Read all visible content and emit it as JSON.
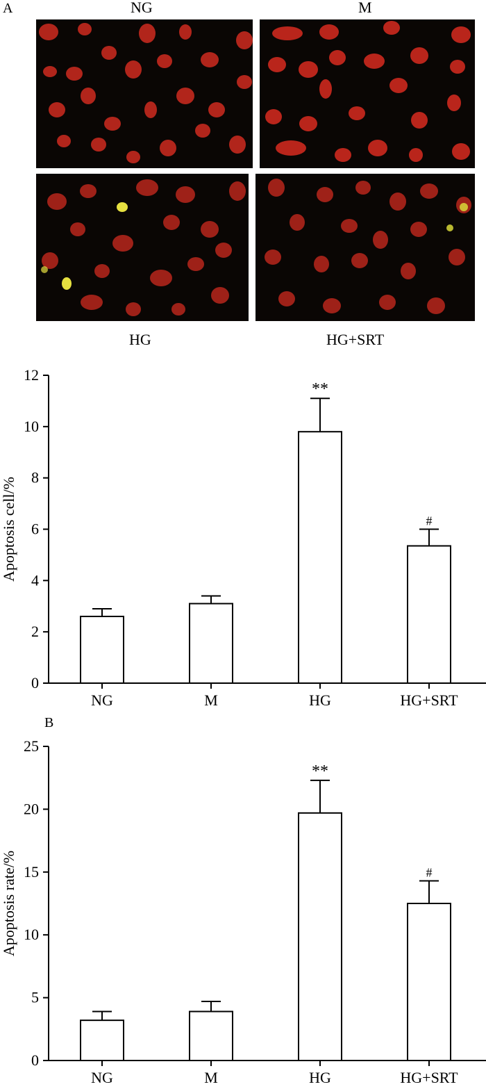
{
  "figure": {
    "panel_a_label": "A",
    "panel_b_label": "B",
    "micrographs": [
      {
        "label": "NG"
      },
      {
        "label": "M"
      },
      {
        "label": "HG"
      },
      {
        "label": "HG+SRT"
      }
    ]
  },
  "colors": {
    "background": "#ffffff",
    "panel_background": "#0a0604",
    "nucleus_red": "#c8281e",
    "apoptotic_yellow": "#e6e040",
    "bar_fill": "#ffffff",
    "bar_stroke": "#000000"
  },
  "chart_data": [
    {
      "type": "bar",
      "categories": [
        "NG",
        "M",
        "HG",
        "HG+SRT"
      ],
      "values": [
        2.6,
        3.1,
        9.8,
        5.35
      ],
      "errors": [
        0.3,
        0.3,
        1.3,
        0.65
      ],
      "annotations": [
        "",
        "",
        "**",
        "#"
      ],
      "title": "",
      "xlabel": "",
      "ylabel": "Apoptosis cell/%",
      "ylim": [
        0,
        12
      ],
      "yticks": [
        0,
        2,
        4,
        6,
        8,
        10,
        12
      ],
      "grid": false
    },
    {
      "type": "bar",
      "categories": [
        "NG",
        "M",
        "HG",
        "HG+SRT"
      ],
      "values": [
        3.2,
        3.9,
        19.7,
        12.5
      ],
      "errors": [
        0.7,
        0.8,
        2.6,
        1.8
      ],
      "annotations": [
        "",
        "",
        "**",
        "#"
      ],
      "title": "",
      "xlabel": "",
      "ylabel": "Apoptosis rate/%",
      "ylim": [
        0,
        25
      ],
      "yticks": [
        0,
        5,
        10,
        15,
        20,
        25
      ],
      "grid": false
    }
  ]
}
